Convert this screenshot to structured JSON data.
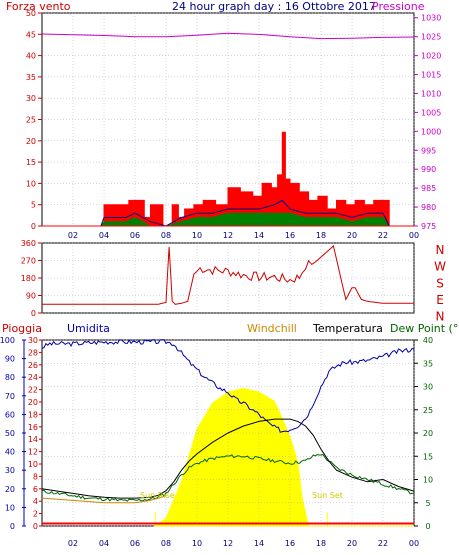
{
  "colors": {
    "wind": "#ff0000",
    "gust": "#ff0000",
    "windLow": "#008000",
    "windAvg": "#000080",
    "pressure": "#cc00cc",
    "direction": "#cc0000",
    "rain": "#ff0000",
    "humidity": "#0000aa",
    "windchill": "#cc8800",
    "temperature": "#000000",
    "dewpoint": "#006600",
    "solar": "#ffff00",
    "axisText": "#000080",
    "grid": "#9999bb",
    "title": "#000080"
  },
  "header": {
    "left": "Forza vento",
    "title": "24 hour graph day : 16 Ottobre 2017",
    "right": "Pressione"
  },
  "legend2": {
    "rain": "Pioggia",
    "humidity": "Umidita",
    "windchill": "Windchill",
    "temperature": "Temperatura",
    "dewpoint": "Dew Point (°C"
  },
  "labels": {
    "sunrise": "Sun Rise",
    "sunset": "Sun Set"
  },
  "chart_data": [
    {
      "type": "line",
      "name": "wind-pressure",
      "x_ticks": [
        "02",
        "04",
        "06",
        "08",
        "10",
        "12",
        "14",
        "16",
        "18",
        "20",
        "22",
        "00"
      ],
      "wind_ticks": [
        "0",
        "5",
        "10",
        "15",
        "20",
        "25",
        "30",
        "35",
        "40",
        "45",
        "50"
      ],
      "pressure_ticks": [
        "975",
        "980",
        "985",
        "990",
        "995",
        "1000",
        "1005",
        "1010",
        "1015",
        "1020",
        "1025",
        "1030"
      ],
      "wind_ylim": [
        0,
        50
      ],
      "pressure_ylim": [
        975,
        1031.25
      ],
      "xlim_hours": [
        0,
        24
      ],
      "pressure": {
        "x": [
          0,
          2,
          4,
          6,
          8,
          10,
          12,
          14,
          16,
          18,
          20,
          22,
          24
        ],
        "y": [
          1025.7,
          1025.5,
          1025.3,
          1025.0,
          1025.0,
          1025.4,
          1025.9,
          1025.6,
          1025.0,
          1024.5,
          1024.6,
          1024.8,
          1024.9
        ]
      },
      "gust": {
        "x": [
          0,
          3.8,
          4.0,
          5.4,
          5.6,
          6.2,
          6.6,
          7.0,
          7.8,
          8.4,
          8.8,
          9.2,
          9.8,
          10.4,
          11.2,
          12.0,
          12.8,
          13.6,
          14.2,
          14.8,
          15.2,
          15.5,
          15.7,
          16.0,
          16.6,
          17.2,
          17.8,
          18.4,
          19.0,
          19.6,
          20.2,
          20.8,
          21.4,
          22.0,
          22.4,
          24.0
        ],
        "y": [
          0,
          0,
          5,
          5,
          6,
          6,
          2,
          5,
          0,
          5,
          2,
          4,
          5,
          6,
          5,
          9,
          8,
          7,
          10,
          9,
          12,
          22,
          11,
          10,
          8,
          6,
          7,
          4,
          6,
          5,
          6,
          5,
          6,
          6,
          0,
          0
        ]
      },
      "wind_avg": {
        "x": [
          0,
          3.8,
          4.0,
          5.4,
          6.0,
          7.0,
          8.0,
          9.0,
          10.0,
          11.0,
          12.0,
          13.0,
          14.0,
          15.0,
          15.5,
          16.0,
          17.0,
          18.0,
          19.0,
          20.0,
          21.0,
          22.0,
          22.4,
          24.0
        ],
        "y": [
          0,
          0,
          2,
          2,
          3,
          1,
          0,
          2,
          3,
          3,
          4,
          4,
          4,
          5,
          6,
          4,
          3,
          3,
          3,
          2,
          3,
          3,
          0,
          0
        ]
      },
      "wind_low": {
        "x": [
          0,
          3.8,
          4.0,
          5.4,
          6.0,
          7.0,
          8.0,
          9.0,
          10.0,
          11.0,
          12.0,
          13.0,
          14.0,
          15.0,
          16.0,
          17.0,
          18.0,
          19.0,
          20.0,
          21.0,
          22.0,
          22.4,
          24.0
        ],
        "y": [
          0,
          0,
          1,
          1,
          2,
          0,
          0,
          1,
          2,
          2,
          3,
          3,
          3,
          3,
          3,
          2,
          2,
          2,
          1,
          2,
          2,
          0,
          0
        ]
      }
    },
    {
      "type": "line",
      "name": "wind-direction",
      "y_ticks": [
        "0",
        "90",
        "180",
        "270",
        "360"
      ],
      "compass": [
        "N",
        "W",
        "S",
        "E",
        "N"
      ],
      "ylim": [
        0,
        360
      ],
      "x": [
        0,
        6.5,
        7.5,
        8.0,
        8.2,
        8.4,
        8.6,
        9.0,
        9.4,
        9.8,
        10.2,
        11.0,
        12.0,
        13.0,
        14.0,
        15.0,
        16.0,
        16.6,
        17.0,
        17.4,
        17.6,
        18.6,
        18.8,
        19.6,
        19.8,
        20.0,
        20.2,
        20.6,
        21.0,
        22.0,
        24.0
      ],
      "y": [
        45,
        45,
        45,
        55,
        340,
        60,
        45,
        50,
        60,
        200,
        230,
        220,
        215,
        195,
        185,
        185,
        170,
        185,
        245,
        250,
        260,
        330,
        345,
        70,
        100,
        130,
        130,
        70,
        60,
        50,
        50
      ]
    },
    {
      "type": "line",
      "name": "temperature-humidity",
      "rain_ticks": [
        "0",
        "2",
        "4",
        "6",
        "8",
        "10",
        "12",
        "14",
        "16",
        "18",
        "20",
        "22",
        "24",
        "26",
        "28",
        "30"
      ],
      "humidity_ticks": [
        "0",
        "10",
        "20",
        "30",
        "40",
        "50",
        "60",
        "70",
        "80",
        "90",
        "100"
      ],
      "temp_ticks": [
        "0",
        "5",
        "10",
        "15",
        "20",
        "25",
        "30",
        "35",
        "40"
      ],
      "rain_ylim": [
        0,
        30
      ],
      "humidity_ylim": [
        0,
        100
      ],
      "temp_ylim": [
        0,
        40
      ],
      "humidity": {
        "x": [
          0,
          0.5,
          2,
          4,
          6,
          8,
          8.5,
          9,
          9.5,
          10,
          10.5,
          11,
          11.5,
          12,
          12.5,
          13,
          13.5,
          14,
          14.5,
          15,
          15.5,
          16,
          16.5,
          17,
          17.3,
          17.6,
          18,
          18.5,
          19,
          19.5,
          20,
          21,
          22,
          23,
          24
        ],
        "y": [
          96,
          98,
          98,
          99,
          99,
          99,
          98,
          93,
          88,
          84,
          80,
          77,
          74,
          72,
          68,
          66,
          63,
          60,
          56,
          53,
          51,
          52,
          54,
          58,
          62,
          68,
          75,
          83,
          86,
          88,
          88,
          89,
          91,
          94,
          95
        ]
      },
      "temperature": {
        "x": [
          0,
          1,
          2,
          3,
          4,
          5,
          6,
          7,
          7.5,
          8,
          8.5,
          9,
          9.5,
          10,
          11,
          12,
          13,
          14,
          15,
          16,
          16.5,
          17,
          17.5,
          18,
          18.5,
          19,
          20,
          21,
          22,
          23,
          24
        ],
        "y": [
          8.0,
          7.5,
          7.0,
          6.5,
          6.2,
          6.0,
          6.0,
          6.2,
          6.6,
          7.6,
          9.5,
          12.0,
          14.0,
          15.5,
          18.0,
          20.0,
          21.5,
          22.5,
          23.0,
          23.0,
          22.5,
          21.5,
          19.5,
          16.5,
          14.0,
          12.0,
          10.5,
          9.5,
          10.0,
          8.5,
          7.5
        ]
      },
      "dewpoint": {
        "x": [
          0,
          1,
          2,
          3,
          4,
          5,
          6,
          7,
          7.5,
          8,
          8.5,
          9,
          9.5,
          10,
          11,
          12,
          13,
          14,
          15,
          16,
          17,
          17.5,
          18,
          18.5,
          19,
          20,
          21,
          22,
          23,
          24
        ],
        "y": [
          7.5,
          7.0,
          6.5,
          6.0,
          5.8,
          5.5,
          5.5,
          5.8,
          6.2,
          7.0,
          9.0,
          11.0,
          12.5,
          13.5,
          14.5,
          15.0,
          15.0,
          14.5,
          14.0,
          13.5,
          14.0,
          15.0,
          15.5,
          14.0,
          12.5,
          11.0,
          10.0,
          9.0,
          8.0,
          7.0
        ]
      },
      "windchill": {
        "x": [
          0,
          2,
          4,
          6,
          7,
          7.5,
          8
        ],
        "y": [
          6.0,
          5.5,
          5.0,
          5.0,
          5.5,
          6.0,
          6.5
        ]
      },
      "solar": {
        "x": [
          7.3,
          8,
          9,
          10,
          11,
          12,
          13,
          14,
          15,
          16,
          16.5,
          16.8,
          17.2,
          18.4,
          18.6,
          24
        ],
        "y": [
          0,
          4,
          24,
          52,
          66,
          72,
          74,
          72,
          67,
          48,
          34,
          14,
          0,
          0,
          0,
          0
        ]
      },
      "rain": {
        "x": [
          0,
          24
        ],
        "y": [
          0.4,
          0.4
        ]
      }
    }
  ]
}
